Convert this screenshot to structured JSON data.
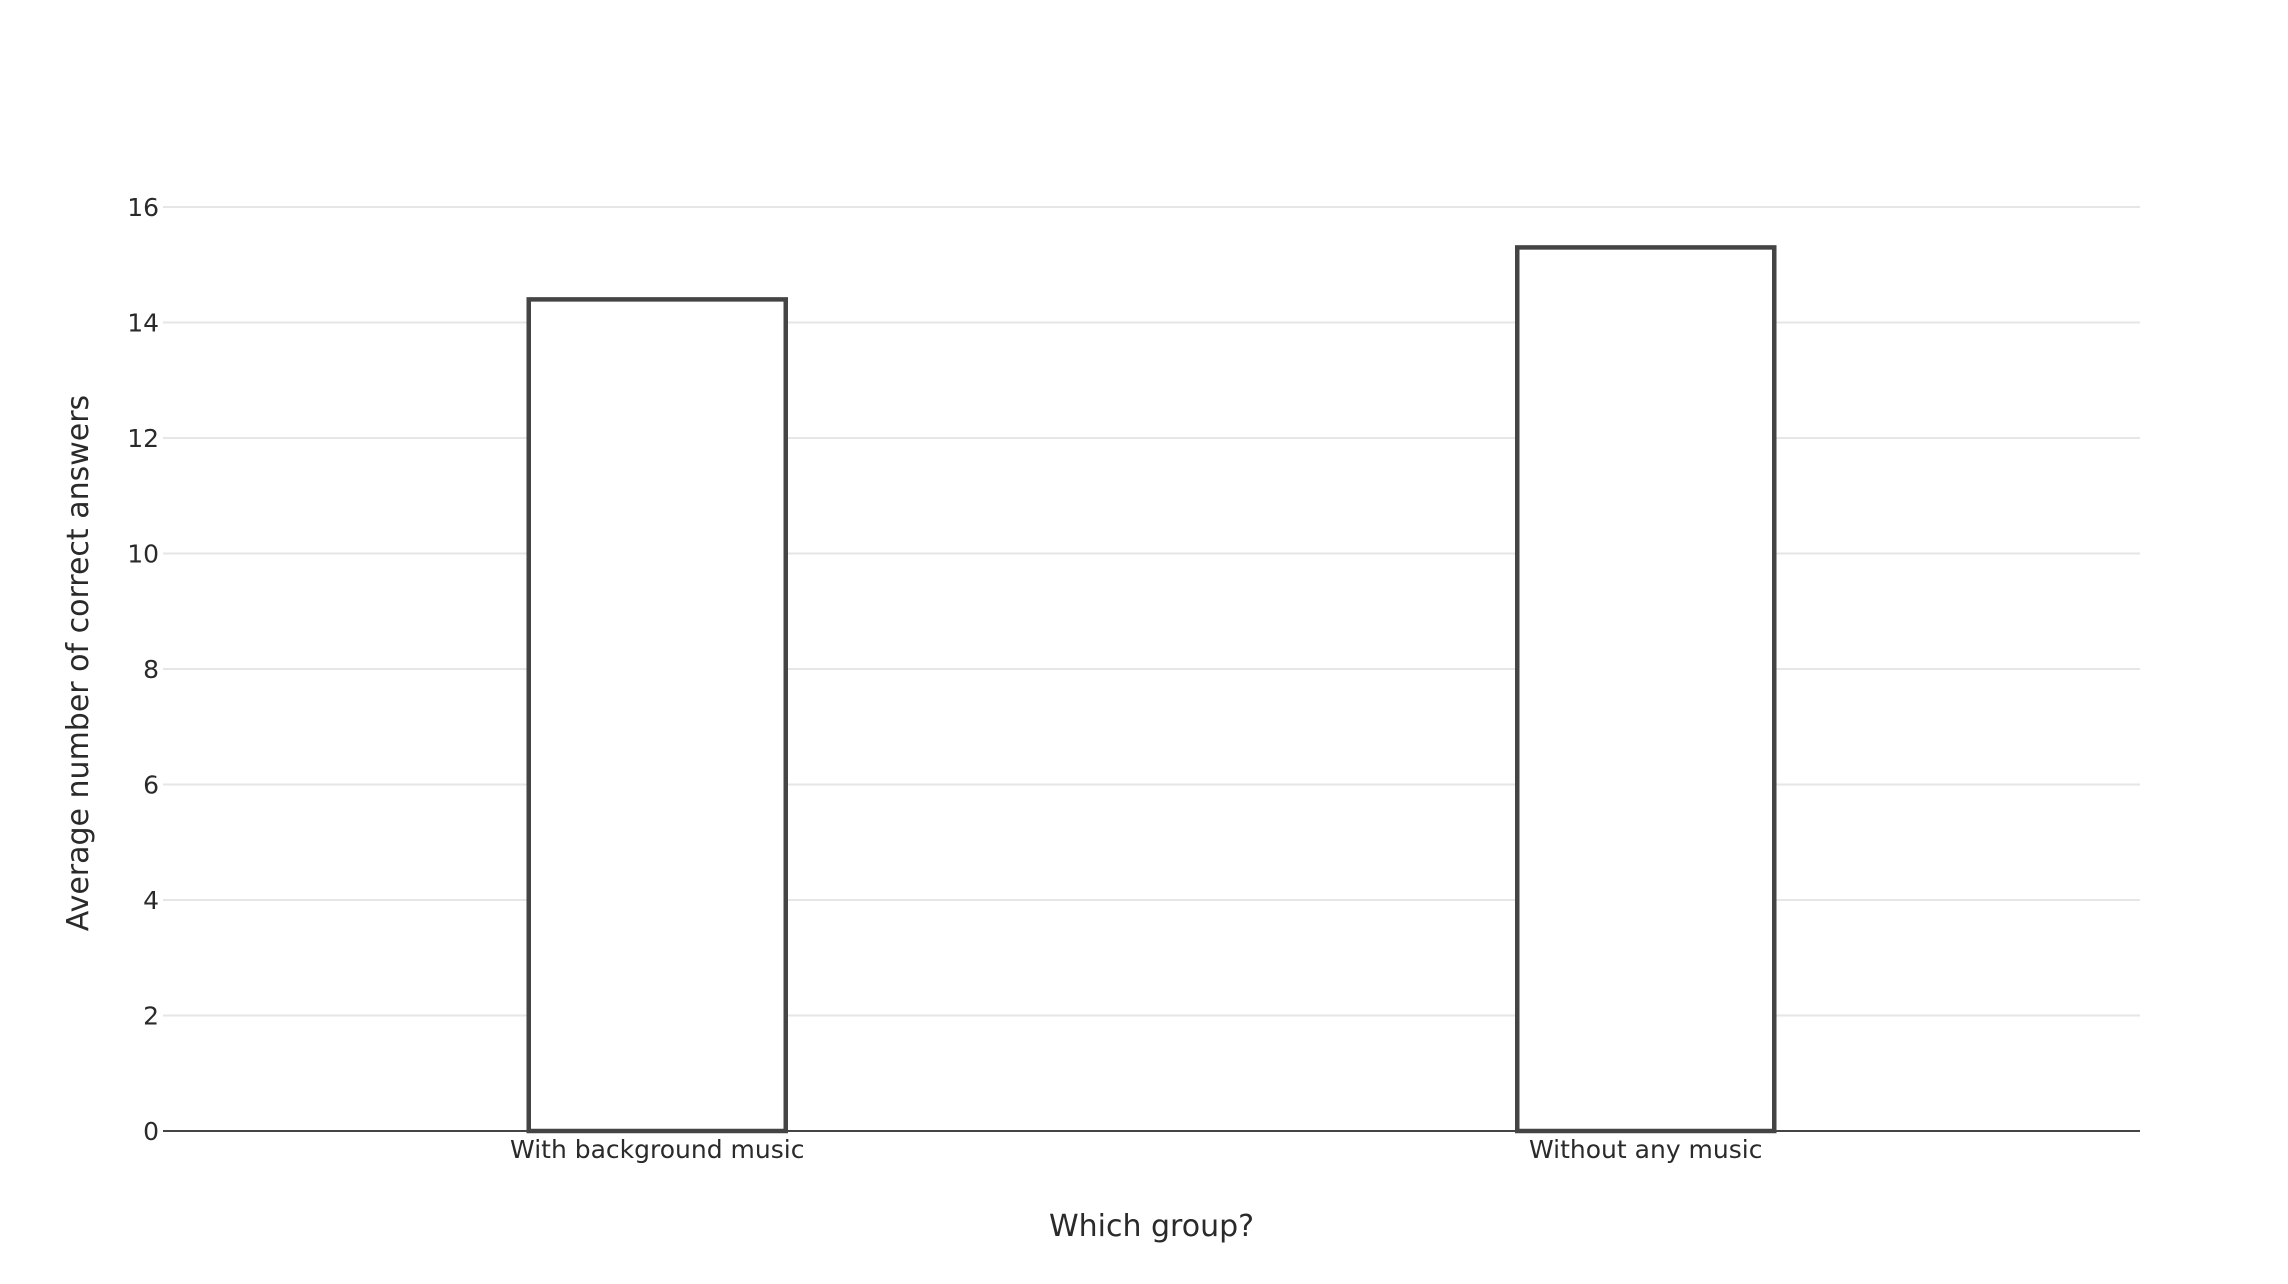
{
  "chart_data": {
    "type": "bar",
    "categories": [
      "With background music",
      "Without any  music"
    ],
    "values": [
      14.4,
      15.3
    ],
    "title": "",
    "xlabel": "Which group?",
    "ylabel": "Average number of correct answers",
    "ylim": [
      0,
      16
    ],
    "yticks": [
      0,
      2,
      4,
      6,
      8,
      10,
      12,
      14,
      16
    ],
    "grid": true,
    "legend": "none",
    "colors": {
      "bar_fill": "#ffffff",
      "bar_outline": "#444444",
      "gridline": "#e6e6e6",
      "text": "#2a2a2a"
    }
  }
}
